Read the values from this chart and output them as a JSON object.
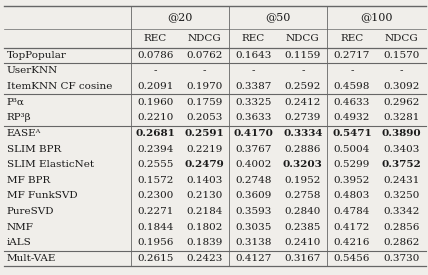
{
  "col_headers_top": [
    "@20",
    "@50",
    "@100"
  ],
  "col_headers_sub": [
    "REC",
    "NDCG",
    "REC",
    "NDCG",
    "REC",
    "NDCG"
  ],
  "rows": [
    {
      "label": "TopPopular",
      "values": [
        "0.0786",
        "0.0762",
        "0.1643",
        "0.1159",
        "0.2717",
        "0.1570"
      ],
      "bold_mask": [
        false,
        false,
        false,
        false,
        false,
        false
      ],
      "group": "top"
    },
    {
      "label": "UserKNN",
      "values": [
        "-",
        "-",
        "-",
        "-",
        "-",
        "-"
      ],
      "bold_mask": [
        false,
        false,
        false,
        false,
        false,
        false
      ],
      "group": "knn"
    },
    {
      "label": "ItemKNN CF cosine",
      "values": [
        "0.2091",
        "0.1970",
        "0.3387",
        "0.2592",
        "0.4598",
        "0.3092"
      ],
      "bold_mask": [
        false,
        false,
        false,
        false,
        false,
        false
      ],
      "group": "knn"
    },
    {
      "label": "P³α",
      "values": [
        "0.1960",
        "0.1759",
        "0.3325",
        "0.2412",
        "0.4633",
        "0.2962"
      ],
      "bold_mask": [
        false,
        false,
        false,
        false,
        false,
        false
      ],
      "group": "p3"
    },
    {
      "label": "RP³β",
      "values": [
        "0.2210",
        "0.2053",
        "0.3633",
        "0.2739",
        "0.4932",
        "0.3281"
      ],
      "bold_mask": [
        false,
        false,
        false,
        false,
        false,
        false
      ],
      "group": "p3"
    },
    {
      "label": "EASEᴬ",
      "values": [
        "0.2681",
        "0.2591",
        "0.4170",
        "0.3334",
        "0.5471",
        "0.3890"
      ],
      "bold_mask": [
        true,
        true,
        true,
        true,
        true,
        true
      ],
      "group": "cf"
    },
    {
      "label": "SLIM BPR",
      "values": [
        "0.2394",
        "0.2219",
        "0.3767",
        "0.2886",
        "0.5004",
        "0.3403"
      ],
      "bold_mask": [
        false,
        false,
        false,
        false,
        false,
        false
      ],
      "group": "cf"
    },
    {
      "label": "SLIM ElasticNet",
      "values": [
        "0.2555",
        "0.2479",
        "0.4002",
        "0.3203",
        "0.5299",
        "0.3752"
      ],
      "bold_mask": [
        false,
        true,
        false,
        true,
        false,
        true
      ],
      "group": "cf"
    },
    {
      "label": "MF BPR",
      "values": [
        "0.1572",
        "0.1403",
        "0.2748",
        "0.1952",
        "0.3952",
        "0.2431"
      ],
      "bold_mask": [
        false,
        false,
        false,
        false,
        false,
        false
      ],
      "group": "cf"
    },
    {
      "label": "MF FunkSVD",
      "values": [
        "0.2300",
        "0.2130",
        "0.3609",
        "0.2758",
        "0.4803",
        "0.3250"
      ],
      "bold_mask": [
        false,
        false,
        false,
        false,
        false,
        false
      ],
      "group": "cf"
    },
    {
      "label": "PureSVD",
      "values": [
        "0.2271",
        "0.2184",
        "0.3593",
        "0.2840",
        "0.4784",
        "0.3342"
      ],
      "bold_mask": [
        false,
        false,
        false,
        false,
        false,
        false
      ],
      "group": "cf"
    },
    {
      "label": "NMF",
      "values": [
        "0.1844",
        "0.1802",
        "0.3035",
        "0.2385",
        "0.4172",
        "0.2856"
      ],
      "bold_mask": [
        false,
        false,
        false,
        false,
        false,
        false
      ],
      "group": "cf"
    },
    {
      "label": "iALS",
      "values": [
        "0.1956",
        "0.1839",
        "0.3138",
        "0.2410",
        "0.4216",
        "0.2862"
      ],
      "bold_mask": [
        false,
        false,
        false,
        false,
        false,
        false
      ],
      "group": "cf"
    },
    {
      "label": "Mult-VAE",
      "values": [
        "0.2615",
        "0.2423",
        "0.4127",
        "0.3167",
        "0.5456",
        "0.3730"
      ],
      "bold_mask": [
        false,
        false,
        false,
        false,
        false,
        false
      ],
      "group": "vae"
    }
  ],
  "bg_color": "#f0eeea",
  "text_color": "#1a1a1a",
  "font_size": 7.5
}
